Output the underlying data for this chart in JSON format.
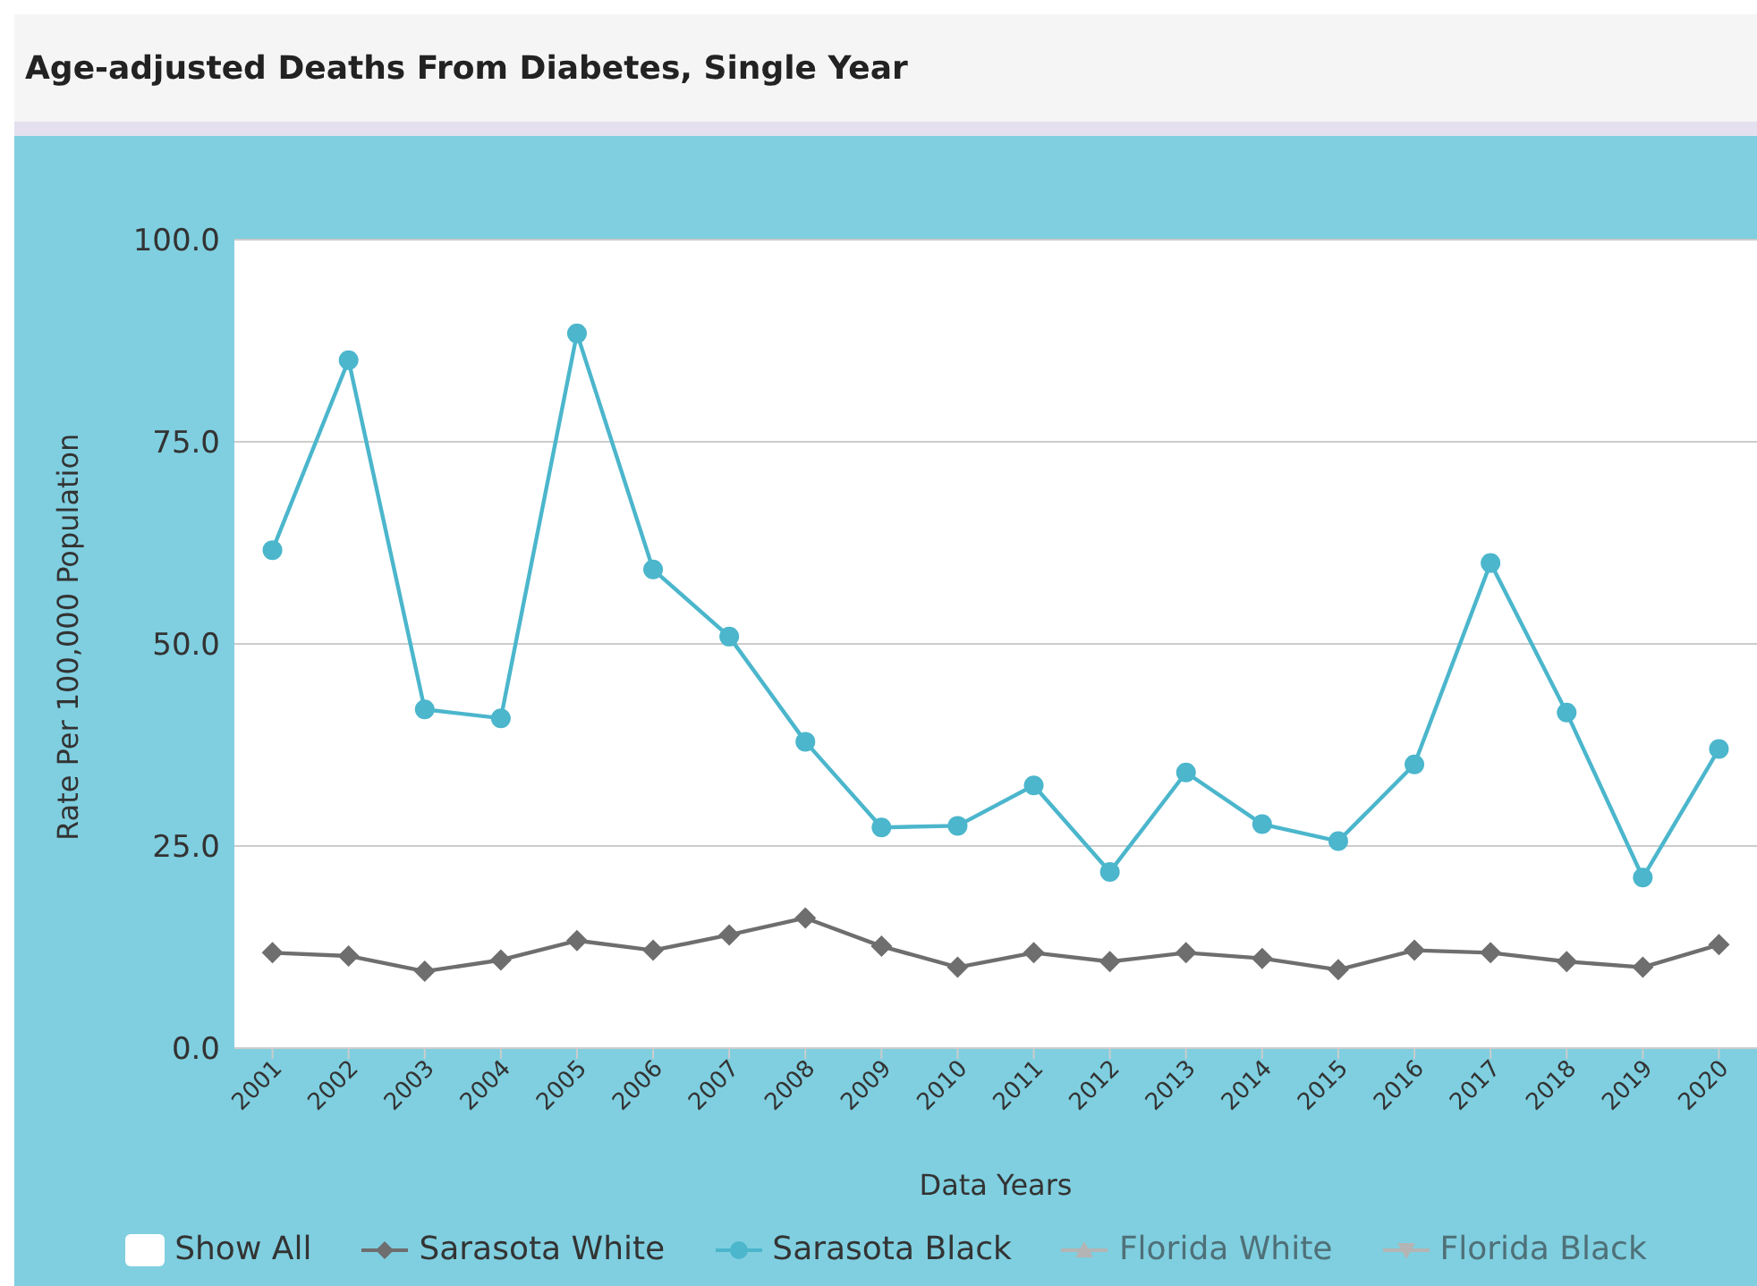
{
  "chart_data": {
    "type": "line",
    "title": "Age-adjusted Deaths From Diabetes, Single Year",
    "xlabel": "Data Years",
    "ylabel": "Rate Per 100,000 Population",
    "categories": [
      "2001",
      "2002",
      "2003",
      "2004",
      "2005",
      "2006",
      "2007",
      "2008",
      "2009",
      "2010",
      "2011",
      "2012",
      "2013",
      "2014",
      "2015",
      "2016",
      "2017",
      "2018",
      "2019",
      "2020"
    ],
    "series": [
      {
        "name": "Sarasota White",
        "color": "#6e6e6e",
        "marker": "diamond",
        "values": [
          11.8,
          11.4,
          9.5,
          10.9,
          13.3,
          12.1,
          14.0,
          16.1,
          12.6,
          10.0,
          11.8,
          10.7,
          11.8,
          11.1,
          9.7,
          12.1,
          11.8,
          10.7,
          10.0,
          12.8
        ]
      },
      {
        "name": "Sarasota Black",
        "color": "#4bb6cc",
        "marker": "circle",
        "values": [
          61.6,
          85.1,
          41.9,
          40.8,
          88.4,
          59.2,
          50.9,
          37.9,
          27.3,
          27.5,
          32.5,
          21.8,
          34.1,
          27.7,
          25.6,
          35.1,
          60.0,
          41.5,
          21.1,
          37.0
        ]
      },
      {
        "name": "Florida White",
        "color": "#b4b4b4",
        "marker": "triangle",
        "values": [
          null,
          null,
          null,
          null,
          null,
          null,
          null,
          null,
          null,
          null,
          null,
          null,
          null,
          null,
          null,
          null,
          null,
          null,
          null,
          null
        ]
      },
      {
        "name": "Florida Black",
        "color": "#b4b4b4",
        "marker": "triangle-down",
        "values": [
          null,
          null,
          null,
          null,
          null,
          null,
          null,
          null,
          null,
          null,
          null,
          null,
          null,
          null,
          null,
          null,
          null,
          null,
          null,
          null
        ]
      }
    ],
    "ylim": [
      0,
      100
    ],
    "yticks": [
      {
        "value": 0,
        "label": "0.0"
      },
      {
        "value": 25,
        "label": "25.0"
      },
      {
        "value": 50,
        "label": "50.0"
      },
      {
        "value": 75,
        "label": "75.0"
      },
      {
        "value": 100,
        "label": "100.0"
      }
    ],
    "grid": "y",
    "legend": "bottom",
    "annotations": [
      "Show All"
    ]
  }
}
